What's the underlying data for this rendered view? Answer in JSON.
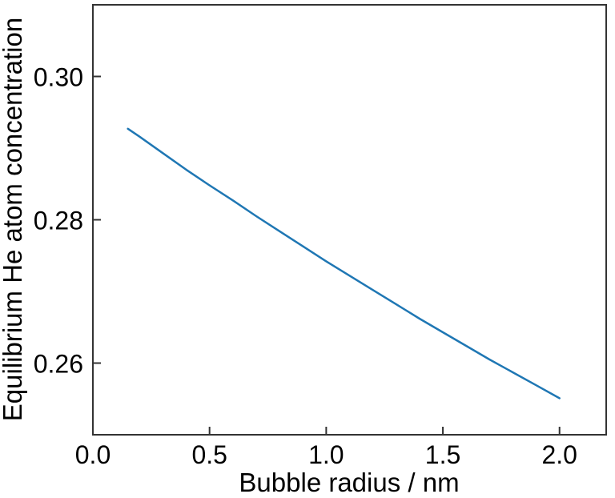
{
  "figure": {
    "background": "#ffffff"
  },
  "chart_data": {
    "type": "line",
    "title": "",
    "xlabel": "Bubble radius / nm",
    "ylabel": "Equilibrium He atom concentration",
    "xlim": [
      0,
      2.2
    ],
    "ylim": [
      0.25,
      0.31
    ],
    "xticks": [
      0,
      0.5,
      1.0,
      1.5,
      2.0
    ],
    "xtick_labels": [
      "0.0",
      "0.5",
      "1.0",
      "1.5",
      "2.0"
    ],
    "yticks": [
      0.26,
      0.28,
      0.3
    ],
    "ytick_labels": [
      "0.26",
      "0.28",
      "0.30"
    ],
    "grid": false,
    "legend": false,
    "tick_direction": "in",
    "colors": {
      "line": "#1f77b4",
      "axis": "#333333",
      "text": "#000000",
      "background": "#ffffff"
    },
    "series": [
      {
        "name": "equilibrium-he-atom-concentration",
        "x": [
          0.15,
          0.2,
          0.3,
          0.4,
          0.5,
          0.6,
          0.7,
          0.8,
          0.9,
          1.0,
          1.1,
          1.2,
          1.3,
          1.4,
          1.5,
          1.6,
          1.7,
          1.8,
          1.9,
          2.0
        ],
        "y": [
          0.2927,
          0.2916,
          0.2893,
          0.287,
          0.2848,
          0.2827,
          0.2805,
          0.2784,
          0.2763,
          0.2742,
          0.2722,
          0.2702,
          0.2682,
          0.2662,
          0.2643,
          0.2624,
          0.2605,
          0.2587,
          0.2569,
          0.2551
        ]
      }
    ]
  }
}
